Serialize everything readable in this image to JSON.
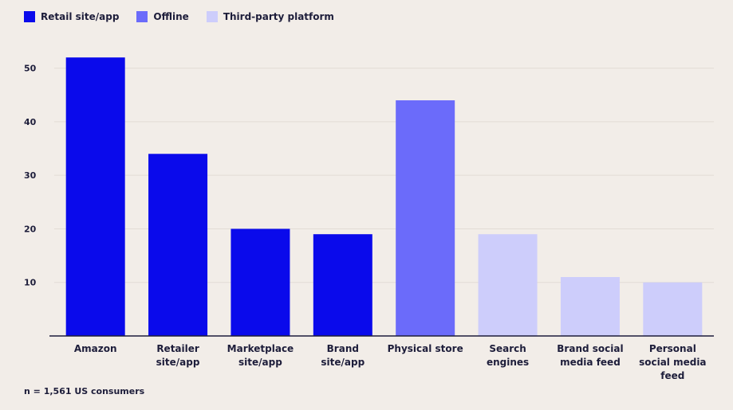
{
  "chart_data": {
    "type": "bar",
    "categories": [
      [
        "Amazon"
      ],
      [
        "Retailer",
        "site/app"
      ],
      [
        "Marketplace",
        "site/app"
      ],
      [
        "Brand",
        "site/app"
      ],
      [
        "Physical store"
      ],
      [
        "Search",
        "engines"
      ],
      [
        "Brand social",
        "media feed"
      ],
      [
        "Personal",
        "social media",
        "feed"
      ]
    ],
    "values": [
      52,
      34,
      20,
      19,
      44,
      19,
      11,
      10
    ],
    "bar_series": [
      0,
      0,
      0,
      0,
      1,
      2,
      2,
      2
    ],
    "series": [
      {
        "name": "Retail site/app",
        "color": "#0a0aeb"
      },
      {
        "name": "Offline",
        "color": "#6b6bfa"
      },
      {
        "name": "Third-party platform",
        "color": "#cdcdfb"
      }
    ],
    "yticks": [
      10,
      20,
      30,
      40,
      50
    ],
    "ylim": [
      0,
      55
    ],
    "grid": true,
    "legend_position": "top-left",
    "title": "",
    "xlabel": "",
    "ylabel": "",
    "footnote": "n = 1,561 US consumers"
  }
}
